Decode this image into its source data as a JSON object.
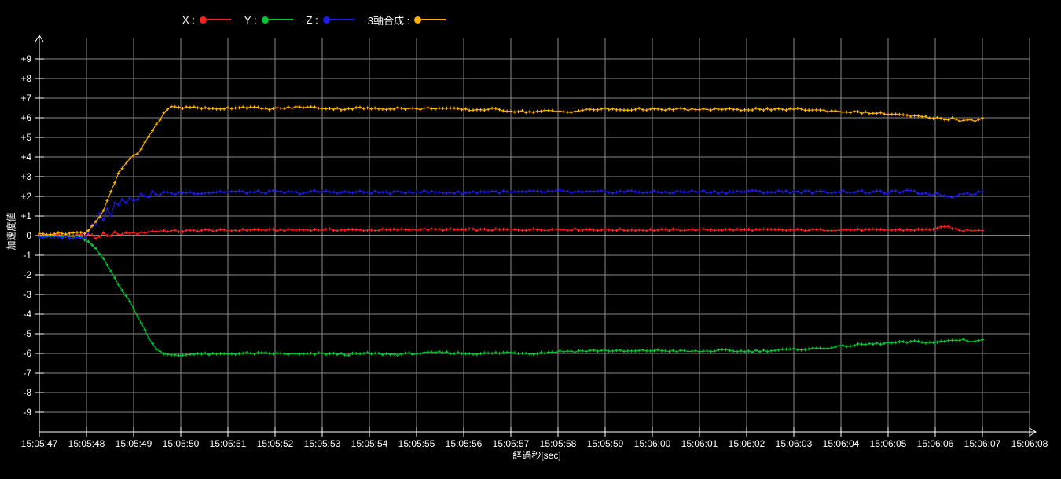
{
  "colors": {
    "background": "#000000",
    "grid": "#878787",
    "axis": "#ffffff",
    "zero_line": "#ffffff",
    "text": "#ffffff"
  },
  "legend": {
    "position": "top",
    "items": [
      {
        "label": "X :",
        "color": "#ff2020"
      },
      {
        "label": "Y :",
        "color": "#00c830"
      },
      {
        "label": "Z :",
        "color": "#1c1cee"
      },
      {
        "label": "3軸合成 :",
        "color": "#ffb300"
      }
    ]
  },
  "chart_data": {
    "type": "line",
    "title": "",
    "xlabel": "経過秒[sec]",
    "ylabel": "加速度値",
    "grid": true,
    "ylim": [
      -9,
      9
    ],
    "y_ticks": [
      [
        9,
        "+9"
      ],
      [
        8,
        "+8"
      ],
      [
        7,
        "+7"
      ],
      [
        6,
        "+6"
      ],
      [
        5,
        "+5"
      ],
      [
        4,
        "+4"
      ],
      [
        3,
        "+3"
      ],
      [
        2,
        "+2"
      ],
      [
        1,
        "+1"
      ],
      [
        0,
        "0"
      ],
      [
        -1,
        "-1"
      ],
      [
        -2,
        "-2"
      ],
      [
        -3,
        "-3"
      ],
      [
        -4,
        "-4"
      ],
      [
        -5,
        "-5"
      ],
      [
        -6,
        "-6"
      ],
      [
        -7,
        "-7"
      ],
      [
        -8,
        "-8"
      ],
      [
        -9,
        "-9"
      ]
    ],
    "x_ticks": [
      "15:05:47",
      "15:05:48",
      "15:05:49",
      "15:05:50",
      "15:05:51",
      "15:05:52",
      "15:05:53",
      "15:05:54",
      "15:05:55",
      "15:05:56",
      "15:05:57",
      "15:05:58",
      "15:05:59",
      "15:06:00",
      "15:06:01",
      "15:06:02",
      "15:06:03",
      "15:06:04",
      "15:06:05",
      "15:06:06",
      "15:06:07",
      "15:06:08"
    ],
    "x_seconds_per_tick": 1,
    "data_end_tick_index": 20,
    "series": [
      {
        "name": "X",
        "color": "#ff2020",
        "noise": 0.05,
        "anchors": [
          [
            0,
            0.02
          ],
          [
            0.3,
            0.05
          ],
          [
            0.6,
            0.0
          ],
          [
            0.9,
            0.05
          ],
          [
            1.0,
            -0.05
          ],
          [
            1.1,
            0.1
          ],
          [
            1.2,
            -0.15
          ],
          [
            1.35,
            0.1
          ],
          [
            1.5,
            -0.1
          ],
          [
            1.6,
            0.15
          ],
          [
            1.75,
            0.05
          ],
          [
            1.9,
            0.15
          ],
          [
            2.1,
            0.1
          ],
          [
            2.3,
            0.2
          ],
          [
            2.6,
            0.25
          ],
          [
            3.0,
            0.22
          ],
          [
            3.5,
            0.28
          ],
          [
            4,
            0.25
          ],
          [
            4.5,
            0.3
          ],
          [
            5,
            0.28
          ],
          [
            6,
            0.3
          ],
          [
            7,
            0.28
          ],
          [
            8,
            0.32
          ],
          [
            9,
            0.3
          ],
          [
            10,
            0.3
          ],
          [
            11,
            0.32
          ],
          [
            12,
            0.3
          ],
          [
            13,
            0.28
          ],
          [
            14,
            0.3
          ],
          [
            15,
            0.3
          ],
          [
            16,
            0.28
          ],
          [
            17,
            0.3
          ],
          [
            18,
            0.28
          ],
          [
            18.8,
            0.3
          ],
          [
            19.3,
            0.45
          ],
          [
            19.5,
            0.25
          ],
          [
            20,
            0.3
          ]
        ]
      },
      {
        "name": "Y",
        "color": "#00c830",
        "noise": 0.05,
        "anchors": [
          [
            0,
            -0.02
          ],
          [
            0.3,
            -0.05
          ],
          [
            0.6,
            -0.05
          ],
          [
            0.85,
            -0.05
          ],
          [
            1.0,
            -0.25
          ],
          [
            1.1,
            -0.45
          ],
          [
            1.2,
            -0.7
          ],
          [
            1.3,
            -1.0
          ],
          [
            1.4,
            -1.35
          ],
          [
            1.5,
            -1.75
          ],
          [
            1.6,
            -2.15
          ],
          [
            1.7,
            -2.55
          ],
          [
            1.8,
            -2.9
          ],
          [
            1.9,
            -3.3
          ],
          [
            2.0,
            -3.75
          ],
          [
            2.1,
            -4.15
          ],
          [
            2.2,
            -4.65
          ],
          [
            2.3,
            -5.1
          ],
          [
            2.4,
            -5.5
          ],
          [
            2.5,
            -5.8
          ],
          [
            2.6,
            -5.95
          ],
          [
            2.75,
            -6.1
          ],
          [
            3.0,
            -6.1
          ],
          [
            3.3,
            -6.0
          ],
          [
            3.7,
            -6.05
          ],
          [
            4.2,
            -6.0
          ],
          [
            5,
            -6.0
          ],
          [
            5.5,
            -6.05
          ],
          [
            6,
            -6.0
          ],
          [
            6.5,
            -6.05
          ],
          [
            7,
            -6.0
          ],
          [
            7.5,
            -6.05
          ],
          [
            8,
            -6.0
          ],
          [
            8.5,
            -5.95
          ],
          [
            9,
            -6.0
          ],
          [
            9.5,
            -6.0
          ],
          [
            10,
            -5.95
          ],
          [
            10.5,
            -6.0
          ],
          [
            11,
            -5.9
          ],
          [
            11.5,
            -5.88
          ],
          [
            12,
            -5.85
          ],
          [
            12.5,
            -5.9
          ],
          [
            13,
            -5.85
          ],
          [
            13.5,
            -5.88
          ],
          [
            14,
            -5.9
          ],
          [
            14.5,
            -5.85
          ],
          [
            15,
            -5.9
          ],
          [
            15.5,
            -5.85
          ],
          [
            16,
            -5.8
          ],
          [
            16.5,
            -5.75
          ],
          [
            17,
            -5.65
          ],
          [
            17.4,
            -5.55
          ],
          [
            17.8,
            -5.5
          ],
          [
            18.2,
            -5.45
          ],
          [
            18.6,
            -5.4
          ],
          [
            19,
            -5.45
          ],
          [
            19.3,
            -5.35
          ],
          [
            19.6,
            -5.3
          ],
          [
            19.8,
            -5.4
          ],
          [
            20,
            -5.3
          ]
        ]
      },
      {
        "name": "Z",
        "color": "#1c1cee",
        "noise": 0.07,
        "anchors": [
          [
            0,
            -0.05
          ],
          [
            0.3,
            -0.1
          ],
          [
            0.6,
            -0.08
          ],
          [
            0.9,
            -0.15
          ],
          [
            1.0,
            0.0
          ],
          [
            1.1,
            0.65
          ],
          [
            1.18,
            0.4
          ],
          [
            1.28,
            1.15
          ],
          [
            1.35,
            0.75
          ],
          [
            1.45,
            1.5
          ],
          [
            1.52,
            1.05
          ],
          [
            1.62,
            1.8
          ],
          [
            1.7,
            1.45
          ],
          [
            1.78,
            2.05
          ],
          [
            1.85,
            1.65
          ],
          [
            1.95,
            2.1
          ],
          [
            2.02,
            1.55
          ],
          [
            2.1,
            2.0
          ],
          [
            2.2,
            2.15
          ],
          [
            2.3,
            1.85
          ],
          [
            2.4,
            2.2
          ],
          [
            2.5,
            2.05
          ],
          [
            2.65,
            2.25
          ],
          [
            2.8,
            2.1
          ],
          [
            3.0,
            2.2
          ],
          [
            3.5,
            2.18
          ],
          [
            4,
            2.25
          ],
          [
            4.5,
            2.2
          ],
          [
            5,
            2.22
          ],
          [
            5.5,
            2.18
          ],
          [
            6,
            2.25
          ],
          [
            6.5,
            2.2
          ],
          [
            7,
            2.22
          ],
          [
            7.5,
            2.18
          ],
          [
            8,
            2.25
          ],
          [
            8.5,
            2.2
          ],
          [
            9,
            2.18
          ],
          [
            9.5,
            2.25
          ],
          [
            10,
            2.2
          ],
          [
            10.5,
            2.22
          ],
          [
            11,
            2.25
          ],
          [
            11.5,
            2.2
          ],
          [
            12,
            2.22
          ],
          [
            12.5,
            2.25
          ],
          [
            13,
            2.2
          ],
          [
            13.5,
            2.22
          ],
          [
            14,
            2.25
          ],
          [
            14.5,
            2.2
          ],
          [
            15,
            2.25
          ],
          [
            15.5,
            2.22
          ],
          [
            16,
            2.25
          ],
          [
            16.5,
            2.2
          ],
          [
            17,
            2.25
          ],
          [
            17.5,
            2.22
          ],
          [
            18,
            2.2
          ],
          [
            18.4,
            2.25
          ],
          [
            18.8,
            2.15
          ],
          [
            19.1,
            2.1
          ],
          [
            19.35,
            1.95
          ],
          [
            19.55,
            2.2
          ],
          [
            19.75,
            2.1
          ],
          [
            20,
            2.25
          ]
        ]
      },
      {
        "name": "3軸合成",
        "color": "#ffb300",
        "noise": 0.05,
        "anchors": [
          [
            0,
            0.08
          ],
          [
            0.3,
            0.1
          ],
          [
            0.6,
            0.12
          ],
          [
            0.9,
            0.15
          ],
          [
            1.0,
            0.15
          ],
          [
            1.1,
            0.45
          ],
          [
            1.2,
            0.75
          ],
          [
            1.3,
            1.0
          ],
          [
            1.4,
            1.5
          ],
          [
            1.5,
            2.1
          ],
          [
            1.6,
            2.7
          ],
          [
            1.67,
            3.1
          ],
          [
            1.75,
            3.4
          ],
          [
            1.85,
            3.7
          ],
          [
            1.95,
            4.0
          ],
          [
            2.05,
            4.1
          ],
          [
            2.15,
            4.35
          ],
          [
            2.25,
            4.8
          ],
          [
            2.35,
            5.2
          ],
          [
            2.45,
            5.5
          ],
          [
            2.55,
            5.9
          ],
          [
            2.65,
            6.25
          ],
          [
            2.75,
            6.5
          ],
          [
            2.85,
            6.6
          ],
          [
            3.0,
            6.5
          ],
          [
            3.3,
            6.55
          ],
          [
            3.6,
            6.45
          ],
          [
            4,
            6.5
          ],
          [
            4.4,
            6.55
          ],
          [
            4.8,
            6.45
          ],
          [
            5.2,
            6.5
          ],
          [
            5.6,
            6.55
          ],
          [
            6,
            6.5
          ],
          [
            6.4,
            6.45
          ],
          [
            6.8,
            6.5
          ],
          [
            7.2,
            6.45
          ],
          [
            7.6,
            6.5
          ],
          [
            8,
            6.45
          ],
          [
            8.4,
            6.5
          ],
          [
            8.8,
            6.45
          ],
          [
            9.2,
            6.4
          ],
          [
            9.6,
            6.45
          ],
          [
            10,
            6.35
          ],
          [
            10.4,
            6.3
          ],
          [
            10.8,
            6.35
          ],
          [
            11.2,
            6.3
          ],
          [
            11.6,
            6.4
          ],
          [
            12,
            6.45
          ],
          [
            12.4,
            6.4
          ],
          [
            12.8,
            6.45
          ],
          [
            13.2,
            6.4
          ],
          [
            13.6,
            6.45
          ],
          [
            14,
            6.4
          ],
          [
            14.4,
            6.45
          ],
          [
            14.8,
            6.4
          ],
          [
            15.2,
            6.45
          ],
          [
            15.6,
            6.4
          ],
          [
            16,
            6.45
          ],
          [
            16.4,
            6.4
          ],
          [
            16.8,
            6.35
          ],
          [
            17.2,
            6.3
          ],
          [
            17.6,
            6.25
          ],
          [
            18,
            6.2
          ],
          [
            18.4,
            6.1
          ],
          [
            18.7,
            6.05
          ],
          [
            19,
            6.0
          ],
          [
            19.2,
            5.9
          ],
          [
            19.4,
            6.0
          ],
          [
            19.55,
            5.8
          ],
          [
            19.7,
            5.95
          ],
          [
            19.85,
            5.85
          ],
          [
            20,
            5.95
          ]
        ]
      }
    ]
  }
}
